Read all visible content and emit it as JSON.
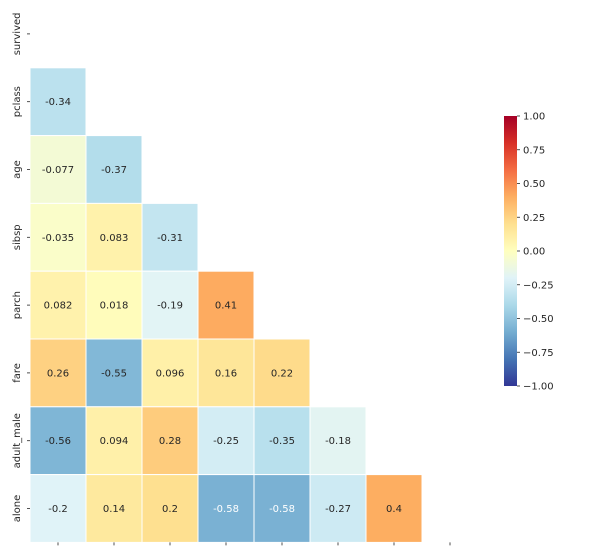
{
  "chart_data": {
    "type": "heatmap",
    "variables": [
      "survived",
      "pclass",
      "age",
      "sibsp",
      "parch",
      "fare",
      "adult_male",
      "alone"
    ],
    "mask": "upper-triangle-including-diagonal",
    "cells": [
      {
        "row": "pclass",
        "col": "survived",
        "value": -0.34,
        "label": "-0.34"
      },
      {
        "row": "age",
        "col": "survived",
        "value": -0.077,
        "label": "-0.077"
      },
      {
        "row": "age",
        "col": "pclass",
        "value": -0.37,
        "label": "-0.37"
      },
      {
        "row": "sibsp",
        "col": "survived",
        "value": -0.035,
        "label": "-0.035"
      },
      {
        "row": "sibsp",
        "col": "pclass",
        "value": 0.083,
        "label": "0.083"
      },
      {
        "row": "sibsp",
        "col": "age",
        "value": -0.31,
        "label": "-0.31"
      },
      {
        "row": "parch",
        "col": "survived",
        "value": 0.082,
        "label": "0.082"
      },
      {
        "row": "parch",
        "col": "pclass",
        "value": 0.018,
        "label": "0.018"
      },
      {
        "row": "parch",
        "col": "age",
        "value": -0.19,
        "label": "-0.19"
      },
      {
        "row": "parch",
        "col": "sibsp",
        "value": 0.41,
        "label": "0.41"
      },
      {
        "row": "fare",
        "col": "survived",
        "value": 0.26,
        "label": "0.26"
      },
      {
        "row": "fare",
        "col": "pclass",
        "value": -0.55,
        "label": "-0.55"
      },
      {
        "row": "fare",
        "col": "age",
        "value": 0.096,
        "label": "0.096"
      },
      {
        "row": "fare",
        "col": "sibsp",
        "value": 0.16,
        "label": "0.16"
      },
      {
        "row": "fare",
        "col": "parch",
        "value": 0.22,
        "label": "0.22"
      },
      {
        "row": "adult_male",
        "col": "survived",
        "value": -0.56,
        "label": "-0.56"
      },
      {
        "row": "adult_male",
        "col": "pclass",
        "value": 0.094,
        "label": "0.094"
      },
      {
        "row": "adult_male",
        "col": "age",
        "value": 0.28,
        "label": "0.28"
      },
      {
        "row": "adult_male",
        "col": "sibsp",
        "value": -0.25,
        "label": "-0.25"
      },
      {
        "row": "adult_male",
        "col": "parch",
        "value": -0.35,
        "label": "-0.35"
      },
      {
        "row": "adult_male",
        "col": "fare",
        "value": -0.18,
        "label": "-0.18"
      },
      {
        "row": "alone",
        "col": "survived",
        "value": -0.2,
        "label": "-0.2"
      },
      {
        "row": "alone",
        "col": "pclass",
        "value": 0.14,
        "label": "0.14"
      },
      {
        "row": "alone",
        "col": "age",
        "value": 0.2,
        "label": "0.2"
      },
      {
        "row": "alone",
        "col": "sibsp",
        "value": -0.58,
        "label": "-0.58"
      },
      {
        "row": "alone",
        "col": "parch",
        "value": -0.58,
        "label": "-0.58"
      },
      {
        "row": "alone",
        "col": "fare",
        "value": -0.27,
        "label": "-0.27"
      },
      {
        "row": "alone",
        "col": "adult_male",
        "value": 0.4,
        "label": "0.4"
      }
    ],
    "colormap": "RdYlBu_r",
    "vmin": -1.0,
    "vmax": 1.0,
    "colorbar": {
      "placement": "right",
      "ticks": [
        1.0,
        0.75,
        0.5,
        0.25,
        0.0,
        -0.25,
        -0.5,
        -0.75,
        -1.0
      ],
      "tick_labels": [
        "1.00",
        "0.75",
        "0.50",
        "0.25",
        "0.00",
        "−0.25",
        "−0.50",
        "−0.75",
        "−1.00"
      ]
    },
    "title": "",
    "xlabel": "",
    "ylabel": "",
    "grid": false,
    "cell_border_color": "#ffffff"
  }
}
